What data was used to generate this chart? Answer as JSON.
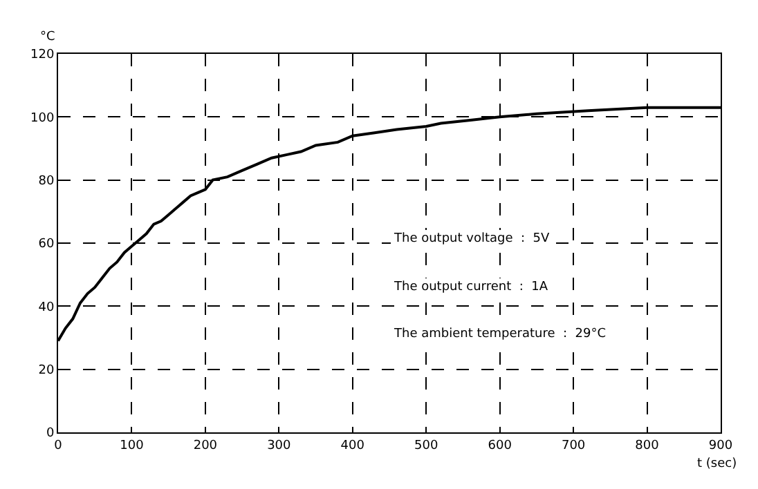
{
  "chart_data": {
    "type": "line",
    "xlabel": "t (sec)",
    "ylabel": "°C",
    "x": [
      0,
      10,
      20,
      30,
      40,
      50,
      60,
      70,
      80,
      90,
      100,
      110,
      120,
      130,
      140,
      150,
      160,
      170,
      180,
      190,
      200,
      210,
      230,
      250,
      270,
      290,
      310,
      330,
      350,
      380,
      400,
      430,
      460,
      500,
      520,
      560,
      600,
      650,
      720,
      800,
      900
    ],
    "series": [
      {
        "color": "#000000",
        "values": [
          29,
          33,
          36,
          41,
          44,
          46,
          49,
          52,
          54,
          57,
          59,
          61,
          63,
          66,
          67,
          69,
          71,
          73,
          75,
          76,
          77,
          80,
          81,
          83,
          85,
          87,
          88,
          89,
          91,
          92,
          94,
          95,
          96,
          97,
          98,
          99,
          100,
          101,
          102,
          103,
          103
        ]
      }
    ],
    "xlim": [
      0,
      900
    ],
    "xticks": [
      0,
      100,
      200,
      300,
      400,
      500,
      600,
      700,
      800,
      900
    ],
    "ylim": [
      0,
      120
    ],
    "yticks": [
      0,
      20,
      40,
      60,
      80,
      100,
      120
    ],
    "grid": true,
    "marker": "none",
    "line_style": "solid",
    "annotations": [
      "The output voltage  :  5V",
      "The output current  :  1A",
      "The ambient temperature  :  29°C"
    ]
  }
}
